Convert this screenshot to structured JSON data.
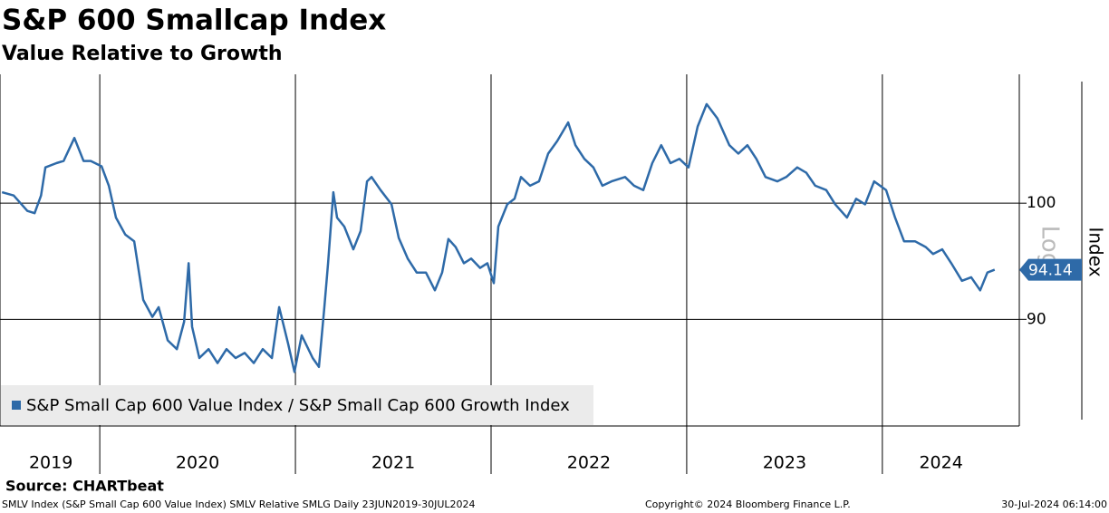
{
  "chart_data": {
    "type": "line",
    "title": "S&P 600 Smallcap Index",
    "subtitle": "Value Relative to Growth",
    "y_label": "Index",
    "scale_label": "Log",
    "log_scale": true,
    "grid": true,
    "legend_position": "lower left",
    "source": "Source: CHARTbeat",
    "footer_left": "SMLV Index (S&P Small Cap 600 Value Index) SMLV Relative SMLG  Daily 23JUN2019-30JUL2024",
    "footer_center": "Copyright© 2024 Bloomberg Finance L.P.",
    "footer_right": "30-Jul-2024 06:14:00",
    "xlim": [
      2019.49,
      2024.7
    ],
    "ylim": [
      81.7,
      112.4
    ],
    "yticks": [
      90,
      100
    ],
    "xticks": [
      {
        "value": 2019.75,
        "label": "2019"
      },
      {
        "value": 2020.5,
        "label": "2020"
      },
      {
        "value": 2021.5,
        "label": "2021"
      },
      {
        "value": 2022.5,
        "label": "2022"
      },
      {
        "value": 2023.5,
        "label": "2023"
      },
      {
        "value": 2024.3,
        "label": "2024"
      }
    ],
    "xgrid": [
      2020,
      2021,
      2022,
      2023,
      2024
    ],
    "x": [
      2019.5,
      2019.56,
      2019.63,
      2019.667,
      2019.7,
      2019.722,
      2019.778,
      2019.815,
      2019.87,
      2019.917,
      2019.954,
      2020.009,
      2020.046,
      2020.083,
      2020.13,
      2020.176,
      2020.222,
      2020.269,
      2020.301,
      2020.347,
      2020.394,
      2020.431,
      2020.454,
      2020.472,
      2020.509,
      2020.556,
      2020.602,
      2020.648,
      2020.694,
      2020.741,
      2020.787,
      2020.833,
      2020.88,
      2020.917,
      2020.963,
      2020.995,
      2021.032,
      2021.088,
      2021.12,
      2021.148,
      2021.167,
      2021.194,
      2021.213,
      2021.25,
      2021.296,
      2021.333,
      2021.366,
      2021.389,
      2021.435,
      2021.491,
      2021.528,
      2021.574,
      2021.62,
      2021.667,
      2021.713,
      2021.75,
      2021.782,
      2021.819,
      2021.861,
      2021.898,
      2021.944,
      2021.981,
      2022.014,
      2022.037,
      2022.083,
      2022.12,
      2022.153,
      2022.199,
      2022.245,
      2022.292,
      2022.338,
      2022.394,
      2022.431,
      2022.477,
      2022.523,
      2022.569,
      2022.616,
      2022.685,
      2022.731,
      2022.778,
      2022.824,
      2022.87,
      2022.917,
      2022.963,
      2023.009,
      2023.056,
      2023.102,
      2023.157,
      2023.218,
      2023.264,
      2023.31,
      2023.356,
      2023.403,
      2023.463,
      2023.509,
      2023.565,
      2023.611,
      2023.657,
      2023.713,
      2023.759,
      2023.819,
      2023.866,
      2023.912,
      2023.958,
      2024.019,
      2024.065,
      2024.111,
      2024.167,
      2024.222,
      2024.259,
      2024.306,
      2024.352,
      2024.407,
      2024.454,
      2024.5,
      2024.537,
      2024.574
    ],
    "series": [
      {
        "name": "S&P Small Cap 600 Value Index / S&P Small Cap 600 Growth Index",
        "color": "#2e6aa8",
        "values": [
          101.0,
          100.7,
          99.3,
          99.1,
          100.7,
          103.3,
          103.7,
          103.9,
          106.1,
          103.9,
          103.9,
          103.4,
          101.6,
          98.7,
          97.2,
          96.6,
          91.6,
          90.2,
          91.0,
          88.3,
          87.6,
          89.8,
          94.7,
          89.4,
          86.9,
          87.6,
          86.5,
          87.6,
          86.9,
          87.3,
          86.5,
          87.6,
          86.9,
          91.0,
          88.0,
          85.8,
          88.7,
          86.9,
          86.2,
          91.0,
          94.7,
          101.0,
          98.7,
          97.9,
          95.9,
          97.5,
          102.0,
          102.4,
          101.2,
          99.9,
          96.9,
          95.1,
          93.9,
          93.9,
          92.4,
          93.9,
          96.8,
          96.1,
          94.7,
          95.1,
          94.3,
          94.7,
          93.0,
          97.9,
          99.9,
          100.4,
          102.4,
          101.6,
          102.0,
          104.6,
          105.8,
          107.6,
          105.4,
          104.1,
          103.3,
          101.6,
          102.0,
          102.4,
          101.6,
          101.2,
          103.7,
          105.4,
          103.7,
          104.1,
          103.3,
          107.2,
          109.4,
          108.0,
          105.4,
          104.6,
          105.4,
          104.1,
          102.4,
          102.0,
          102.4,
          103.3,
          102.8,
          101.6,
          101.2,
          99.9,
          98.7,
          100.4,
          99.9,
          102.0,
          101.2,
          98.7,
          96.6,
          96.6,
          96.1,
          95.5,
          95.9,
          94.7,
          93.2,
          93.5,
          92.4,
          93.9,
          94.14
        ]
      }
    ]
  }
}
